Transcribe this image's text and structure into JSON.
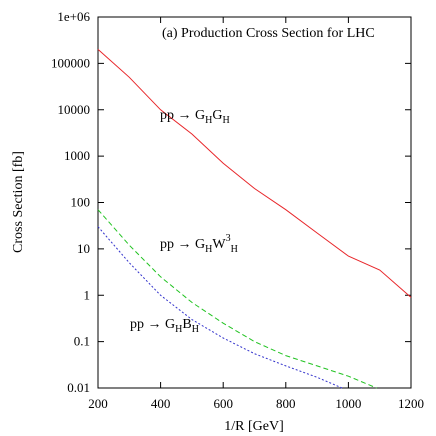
{
  "chart_data": {
    "type": "line",
    "title": "(a) Production Cross Section for LHC",
    "xlabel": "1/R [GeV]",
    "ylabel": "Cross Section [fb]",
    "xlim": [
      200,
      1200
    ],
    "ylim": [
      0.01,
      1000000
    ],
    "yscale": "log",
    "grid": false,
    "legend": "none",
    "x_ticks": [
      "200",
      "400",
      "600",
      "800",
      "1000",
      "1200"
    ],
    "y_ticks": [
      "0.01",
      "0.1",
      "1",
      "10",
      "100",
      "1000",
      "10000",
      "100000",
      "1e+06"
    ],
    "series": [
      {
        "label_parts": [
          "pp → G",
          "H",
          "G",
          "H"
        ],
        "color": "#e8262a",
        "dash": "solid",
        "x": [
          200,
          300,
          400,
          500,
          600,
          700,
          800,
          900,
          1000,
          1100,
          1200
        ],
        "y": [
          200000,
          50000,
          10000,
          3000,
          700,
          200,
          70,
          22,
          7,
          3.5,
          0.9
        ]
      },
      {
        "label_parts": [
          "pp → G",
          "H",
          "W",
          "3",
          "H"
        ],
        "color": "#22c322",
        "dash": "dashed",
        "x": [
          200,
          300,
          400,
          500,
          600,
          700,
          800,
          900,
          1000,
          1090
        ],
        "y": [
          70,
          12,
          2.5,
          0.7,
          0.25,
          0.1,
          0.05,
          0.03,
          0.018,
          0.01
        ]
      },
      {
        "label_parts": [
          "pp  → G",
          "H",
          "B",
          "H"
        ],
        "color": "#3333cc",
        "dash": "dotted",
        "x": [
          200,
          300,
          400,
          500,
          600,
          700,
          800,
          900,
          980
        ],
        "y": [
          30,
          5,
          1,
          0.3,
          0.12,
          0.055,
          0.03,
          0.017,
          0.01
        ]
      }
    ]
  }
}
